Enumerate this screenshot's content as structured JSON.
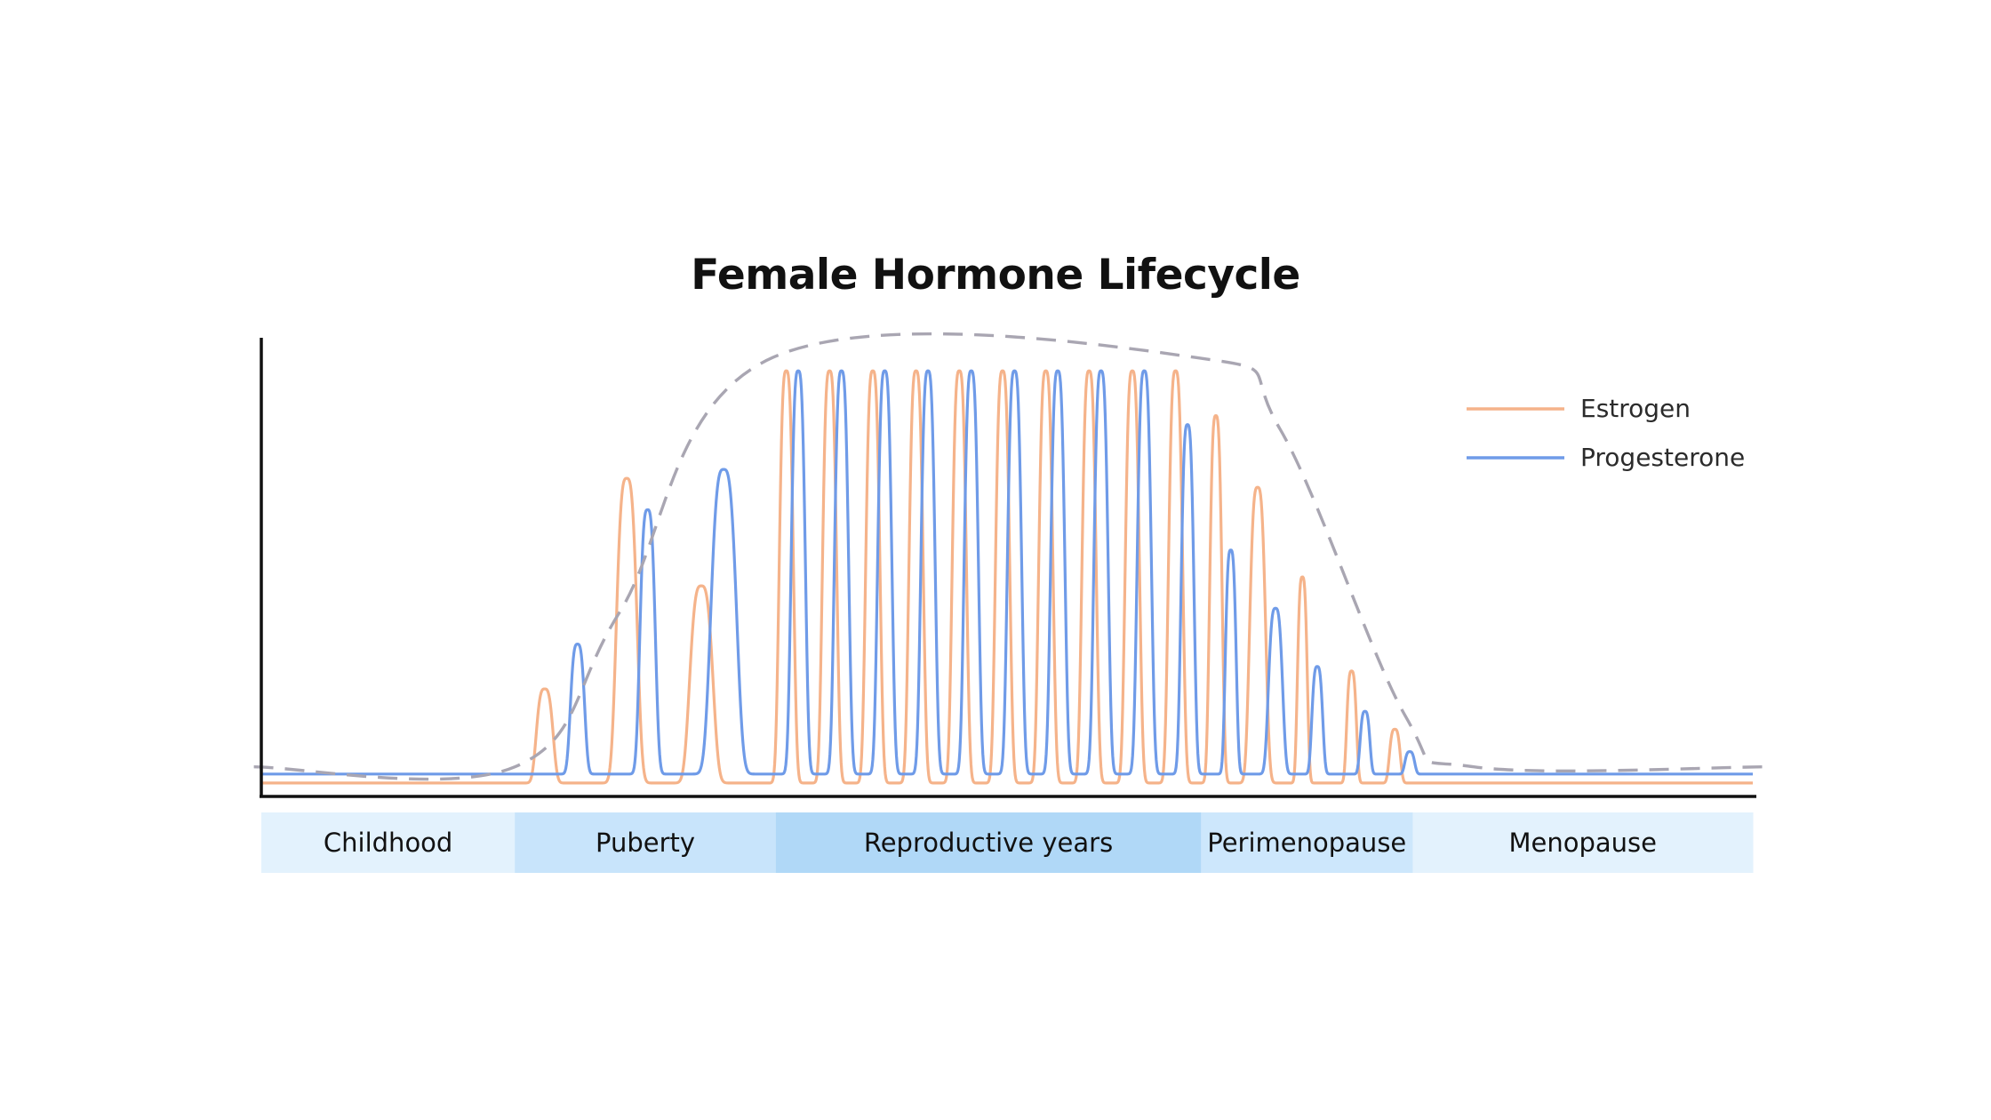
{
  "chart_data": {
    "type": "line",
    "title": "Female Hormone Lifecycle",
    "xlabel": "",
    "ylabel": "",
    "xlim": [
      0,
      100
    ],
    "ylim": [
      0,
      100
    ],
    "grid": false,
    "legend_placement": "top-right",
    "colors": {
      "estrogen": "#f5b38a",
      "progesterone": "#6f9be8",
      "envelope": "#a9a6b2"
    },
    "legend": [
      {
        "key": "estrogen",
        "label": "Estrogen"
      },
      {
        "key": "progesterone",
        "label": "Progesterone"
      }
    ],
    "phases": [
      {
        "label": "Childhood",
        "start": 0,
        "end": 17,
        "color": "#e3f2fd"
      },
      {
        "label": "Puberty",
        "start": 17,
        "end": 34.5,
        "color": "#c8e4fb"
      },
      {
        "label": "Reproductive years",
        "start": 34.5,
        "end": 63,
        "color": "#b0d8f7"
      },
      {
        "label": "Perimenopause",
        "start": 63,
        "end": 77.2,
        "color": "#cde7fc"
      },
      {
        "label": "Menopause",
        "start": 77.2,
        "end": 100,
        "color": "#e3f2fd"
      }
    ],
    "series": [
      {
        "key": "estrogen",
        "baseline": 3,
        "peaks": [
          {
            "x": 19.0,
            "y": 24,
            "w": 0.65
          },
          {
            "x": 24.5,
            "y": 71,
            "w": 0.8
          },
          {
            "x": 29.5,
            "y": 47,
            "w": 0.9
          },
          {
            "x": 35.2,
            "y": 95,
            "w": 0.55
          },
          {
            "x": 38.1,
            "y": 95,
            "w": 0.55
          },
          {
            "x": 41.0,
            "y": 95,
            "w": 0.55
          },
          {
            "x": 43.9,
            "y": 95,
            "w": 0.55
          },
          {
            "x": 46.8,
            "y": 95,
            "w": 0.55
          },
          {
            "x": 49.7,
            "y": 95,
            "w": 0.55
          },
          {
            "x": 52.6,
            "y": 95,
            "w": 0.55
          },
          {
            "x": 55.5,
            "y": 95,
            "w": 0.55
          },
          {
            "x": 58.4,
            "y": 95,
            "w": 0.55
          },
          {
            "x": 61.3,
            "y": 95,
            "w": 0.55
          },
          {
            "x": 64.0,
            "y": 85,
            "w": 0.48
          },
          {
            "x": 66.8,
            "y": 69,
            "w": 0.62
          },
          {
            "x": 69.8,
            "y": 49,
            "w": 0.38
          },
          {
            "x": 73.1,
            "y": 28,
            "w": 0.38
          },
          {
            "x": 76.0,
            "y": 15,
            "w": 0.42
          }
        ]
      },
      {
        "key": "progesterone",
        "baseline": 5,
        "peaks": [
          {
            "x": 21.2,
            "y": 34,
            "w": 0.55
          },
          {
            "x": 25.9,
            "y": 64,
            "w": 0.6
          },
          {
            "x": 31.0,
            "y": 73,
            "w": 1.0
          },
          {
            "x": 36.0,
            "y": 95,
            "w": 0.55
          },
          {
            "x": 38.9,
            "y": 95,
            "w": 0.55
          },
          {
            "x": 41.8,
            "y": 95,
            "w": 0.55
          },
          {
            "x": 44.7,
            "y": 95,
            "w": 0.55
          },
          {
            "x": 47.6,
            "y": 95,
            "w": 0.55
          },
          {
            "x": 50.5,
            "y": 95,
            "w": 0.55
          },
          {
            "x": 53.4,
            "y": 95,
            "w": 0.55
          },
          {
            "x": 56.3,
            "y": 95,
            "w": 0.55
          },
          {
            "x": 59.2,
            "y": 95,
            "w": 0.55
          },
          {
            "x": 62.1,
            "y": 83,
            "w": 0.5
          },
          {
            "x": 65.0,
            "y": 55,
            "w": 0.42
          },
          {
            "x": 68.0,
            "y": 42,
            "w": 0.55
          },
          {
            "x": 70.8,
            "y": 29,
            "w": 0.42
          },
          {
            "x": 74.0,
            "y": 19,
            "w": 0.38
          },
          {
            "x": 77.0,
            "y": 10,
            "w": 0.38
          }
        ]
      }
    ],
    "envelope": {
      "style": "dashed",
      "points": [
        [
          -0.5,
          6.6
        ],
        [
          17,
          6.6
        ],
        [
          24,
          41
        ],
        [
          34.3,
          98
        ],
        [
          62.6,
          98
        ],
        [
          68.3,
          82
        ],
        [
          76.7,
          18
        ],
        [
          81.3,
          6.6
        ],
        [
          101,
          6.6
        ]
      ]
    }
  }
}
